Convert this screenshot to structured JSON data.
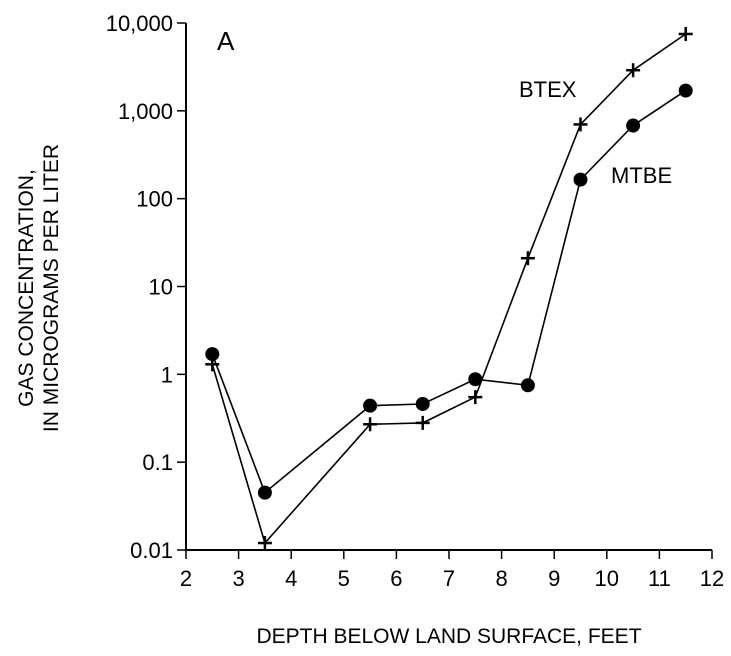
{
  "chart_data": {
    "type": "line",
    "panel_label": "A",
    "xlabel": "DEPTH BELOW LAND SURFACE, FEET",
    "ylabel_line1": "GAS CONCENTRATION,",
    "ylabel_line2": "IN MICROGRAMS PER LITER",
    "xlim": [
      2,
      12
    ],
    "ylim": [
      0.01,
      10000
    ],
    "yscale": "log",
    "grid": false,
    "x_ticks": [
      2,
      3,
      4,
      5,
      6,
      7,
      8,
      9,
      10,
      11,
      12
    ],
    "x_tick_labels": [
      "2",
      "3",
      "4",
      "5",
      "6",
      "7",
      "8",
      "9",
      "10",
      "11",
      "12"
    ],
    "y_ticks": [
      0.01,
      0.1,
      1,
      10,
      100,
      1000,
      10000
    ],
    "y_tick_labels": [
      "0.01",
      "0.1",
      "1",
      "10",
      "100",
      "1,000",
      "10,000"
    ],
    "series": [
      {
        "name": "BTEX",
        "marker": "plus",
        "color": "#000000",
        "x": [
          2.5,
          3.5,
          5.5,
          6.5,
          7.5,
          8.5,
          9.5,
          10.5,
          11.5
        ],
        "y": [
          1.3,
          0.012,
          0.27,
          0.28,
          0.55,
          21,
          700,
          2900,
          7500
        ]
      },
      {
        "name": "MTBE",
        "marker": "circle",
        "color": "#000000",
        "x": [
          2.5,
          3.5,
          5.5,
          6.5,
          7.5,
          8.5,
          9.5,
          10.5,
          11.5
        ],
        "y": [
          1.7,
          0.045,
          0.44,
          0.46,
          0.88,
          0.75,
          165,
          680,
          1700
        ]
      }
    ]
  }
}
